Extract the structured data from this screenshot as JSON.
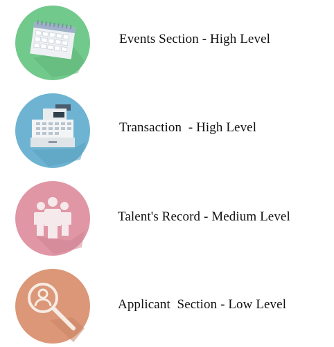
{
  "items": [
    {
      "label": "Events Section - High Level",
      "icon": "calendar-icon",
      "color": "#72c98c"
    },
    {
      "label": "Transaction  - High Level",
      "icon": "cash-register-icon",
      "color": "#6eb4d2"
    },
    {
      "label": "Talent's Record - Medium Level",
      "icon": "people-icon",
      "color": "#e096a4"
    },
    {
      "label": "Applicant  Section - Low Level",
      "icon": "search-person-icon",
      "color": "#db9777"
    }
  ]
}
